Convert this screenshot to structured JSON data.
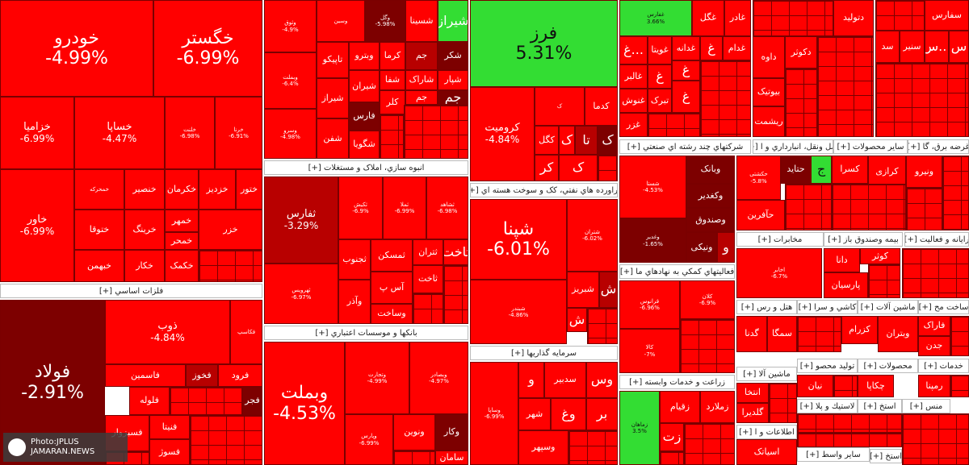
{
  "tiles": {
    "khodro": {
      "name": "خودرو",
      "pct": "-4.99%"
    },
    "khegostar": {
      "name": "خگستر",
      "pct": "-6.99%"
    },
    "khazamia": {
      "name": "خزامیا",
      "pct": "-6.99%"
    },
    "khasapa": {
      "name": "خساپا",
      "pct": "-4.47%"
    },
    "khavar": {
      "name": "خاور",
      "pct": "-6.99%"
    },
    "khanser": {
      "name": "خنصیر"
    },
    "khekaman": {
      "name": "خکرمان"
    },
    "khazdiz": {
      "name": "خزدیز"
    },
    "khatoor": {
      "name": "ختور"
    },
    "kheringe": {
      "name": "خرینگ"
    },
    "khetoga": {
      "name": "ختوقا"
    },
    "khebahman": {
      "name": "خبهمن"
    },
    "khekar": {
      "name": "خکار"
    },
    "khemhar": {
      "name": "خمهر"
    },
    "khekamak": {
      "name": "خکمک"
    },
    "khamhar2": {
      "name": "خمحر"
    },
    "khazar": {
      "name": "خزر"
    },
    "foolad": {
      "name": "فولاد",
      "pct": "-2.91%"
    },
    "zob": {
      "name": "ذوب",
      "pct": "-4.84%"
    },
    "fasmin": {
      "name": "فاسمین"
    },
    "fakhoz": {
      "name": "فخوز"
    },
    "farood": {
      "name": "فرود"
    },
    "faloleh": {
      "name": "فلوله"
    },
    "fasazovar": {
      "name": "فسبزوار"
    },
    "fanita": {
      "name": "فنیتا"
    },
    "fasoz": {
      "name": "فسوژ"
    },
    "fajr": {
      "name": "فجر"
    },
    "vabemelat": {
      "name": "وبملت",
      "pct": "-4.53%"
    },
    "vatejarat": {
      "name": "وتجارت",
      "pct": "-4.99%"
    },
    "vabsader": {
      "name": "وبصادر",
      "pct": "-4.97%"
    },
    "vanovin": {
      "name": "ونوین"
    },
    "vakar": {
      "name": "وکار"
    },
    "samman": {
      "name": "سامان"
    },
    "tefars": {
      "name": "ثفارس",
      "pct": "-3.29%"
    },
    "tejnoob": {
      "name": "ثجنوب"
    },
    "tmaskan": {
      "name": "ثمسکن"
    },
    "tetran": {
      "name": "ثتران"
    },
    "tsaf": {
      "name": "ثاخت"
    },
    "tsabt": {
      "name": "ثاخت"
    },
    "aasp": {
      "name": "آس پ"
    },
    "vaazar": {
      "name": "وآذر"
    },
    "vasakht": {
      "name": "وساخت"
    },
    "vaderdis": {
      "name": "ثهرویس",
      "pct": "-6.97%"
    },
    "shasta": {
      "name": "شستا"
    },
    "tapiko": {
      "name": "تاپیکو"
    },
    "vabitro": {
      "name": "وبترو"
    },
    "kerma": {
      "name": "کرما"
    },
    "jam": {
      "name": "جم"
    },
    "shekar": {
      "name": "شکر"
    },
    "shiraz": {
      "name": "شیراز"
    },
    "sharak": {
      "name": "شاراک"
    },
    "shafa": {
      "name": "شفا"
    },
    "fars": {
      "name": "فارس"
    },
    "shegooya": {
      "name": "شگویا"
    },
    "shefan": {
      "name": "شفن"
    },
    "shiran": {
      "name": "شیران"
    },
    "kalar": {
      "name": "کلر"
    },
    "shpars": {
      "name": "شپار"
    },
    "jampil": {
      "name": "جم"
    },
    "shsina": {
      "name": "شسینا"
    },
    "faraz": {
      "name": "فرز",
      "pct": "5.31%"
    },
    "kemoomit": {
      "name": "کرومیت",
      "pct": "-4.84%"
    },
    "kegel": {
      "name": "کگل"
    },
    "kedma": {
      "name": "کدما"
    },
    "shepna": {
      "name": "شپنا",
      "pct": "-6.01%"
    },
    "shetran": {
      "name": "شتران",
      "pct": "-6.02%"
    },
    "shebriz": {
      "name": "شبریز"
    },
    "shebandar": {
      "name": "شبندر",
      "pct": "-4.86%"
    },
    "vasapa": {
      "name": "وساپا",
      "pct": "-6.99%"
    },
    "sadbir": {
      "name": "سدبیر"
    },
    "shahr": {
      "name": "شهر"
    },
    "vasbahr": {
      "name": "وسپهر"
    },
    "vasfars": {
      "name": "وسفارس"
    },
    "seshimi": {
      "name": "شستا",
      "pct": "-4.53%"
    },
    "vebank": {
      "name": "وبانک"
    },
    "vakadir": {
      "name": "وکغدیر"
    },
    "vasandooq": {
      "name": "وصندوق"
    },
    "vaniki": {
      "name": "ونیکی"
    },
    "vaghadir": {
      "name": "وغدیر",
      "pct": "-1.65%"
    },
    "zamahan": {
      "name": "زماهان",
      "pct": "3.5%"
    },
    "zagham": {
      "name": "زقیام"
    },
    "zmalard": {
      "name": "زملارد"
    },
    "gazar": {
      "name": "غگل"
    },
    "ghadir": {
      "name": "غادر"
    },
    "ghoyeta": {
      "name": "غویتا"
    },
    "ghazal": {
      "name": "غالبر"
    },
    "ghanoosh": {
      "name": "غنوش"
    },
    "ghazr": {
      "name": "غزر"
    },
    "ghadam": {
      "name": "غدام"
    },
    "ghandahaa": {
      "name": "غدانه"
    },
    "ghebrak": {
      "name": "تبرک"
    },
    "ghesaran": {
      "name": "غفارس",
      "pct": "3.66%"
    },
    "davoo": {
      "name": "داوه"
    },
    "dalol": {
      "name": "دتولید"
    },
    "dekotar": {
      "name": "دکوثر"
    },
    "bootik": {
      "name": "بیوتیک"
    },
    "reshamat": {
      "name": "ریشمت"
    },
    "hataid": {
      "name": "حتاید"
    },
    "haafrin": {
      "name": "حآفرین"
    },
    "ekhtrar": {
      "name": "اخابر",
      "pct": "-6.7%"
    },
    "dana": {
      "name": "دانا"
    },
    "parsian": {
      "name": "پارسیان"
    },
    "kosar": {
      "name": "کوثر"
    },
    "kesra": {
      "name": "کسرا"
    },
    "kerazi": {
      "name": "کرازی"
    },
    "vaniro": {
      "name": "ونیرو"
    },
    "sefars": {
      "name": "سفارس"
    },
    "seniar": {
      "name": "سنیر"
    },
    "sad": {
      "name": "سد"
    },
    "semga": {
      "name": "سمگا"
    },
    "gedna": {
      "name": "گدنا"
    },
    "kezram": {
      "name": "کزرام"
    },
    "vabteran": {
      "name": "وبتران"
    },
    "faraak": {
      "name": "فاراک"
    },
    "jedan": {
      "name": "جدن"
    },
    "nian": {
      "name": "نیان"
    },
    "chekapa": {
      "name": "چکاپا"
    },
    "remina": {
      "name": "رمپنا"
    },
    "gadira": {
      "name": "گلدیرا"
    },
    "asiak": {
      "name": "اسیاتک"
    },
    "entehak": {
      "name": "انتخا"
    }
  },
  "sectors": {
    "felezat": "فلزات اساسي [+]",
    "anboh": "انبوه سازي، املاک و مستغلات [+]",
    "banks": "بانکها و موسسات اعتباري [+]",
    "nafti": "فراورده هاي نفتي، کک و سوخت هسته اي [+]",
    "sarmaye": "سرمايه گذاريها [+]",
    "chandreshte": "شرکتهاي چند رشته اي صنعتي [+]",
    "fealiathaye": "فعاليتهاي کمکي به نهادهاي ما [+]",
    "zeraat": "زراعت و خدمات وابسته [+]",
    "haml": "حمل ونقل، انبارداري و ا [+]",
    "sayer_mahsoolat": "ساير محصولات [+]",
    "mokhaberat": "مخابرات [+]",
    "bime": "بيمه وصندوق باز [+]",
    "rayane": "رايانه و فعاليت [+]",
    "ghazai": "غرضه برق، گا [+]",
    "hotel": "هتل و رس [+]",
    "kashi": "كاشي و سرا [+]",
    "mashinalat": "ماشين آلات [+]",
    "sakht": "ساخت مح [+]",
    "tolid": "توليد محصو [+]",
    "mahsoolat2": "محصولات [+]",
    "khadamat": "خدمات [+]",
    "plastik": "لاستيك و پلا [+]",
    "estekh": "استخ [+]",
    "menso": "منس [+]",
    "ettelaat": "اطلاعات و ا [+]",
    "sayer_vasete": "ساير واسط [+]",
    "mashin_alat2": "ماشين آلا [+]",
    "estekh2": "استخ [+]"
  },
  "watermark": {
    "line1": "Photo:JPLUS",
    "line2": "JAMARAN.NEWS"
  }
}
